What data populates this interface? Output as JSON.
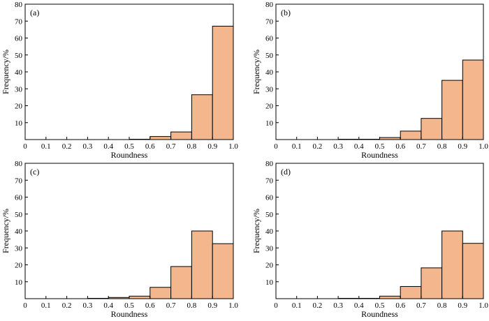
{
  "figure": {
    "panels": [
      "(a)",
      "(b)",
      "(c)",
      "(d)"
    ]
  },
  "colors": {
    "bar_fill": "#f4b68c",
    "bar_stroke": "#000000",
    "axis": "#000000"
  },
  "chart_data": [
    {
      "type": "bar",
      "panel": "(a)",
      "xlabel": "Roundness",
      "ylabel": "Frequency/%",
      "xlim": [
        0,
        1.0
      ],
      "ylim": [
        0,
        80
      ],
      "xticks": [
        "0",
        "0.1",
        "0.2",
        "0.3",
        "0.4",
        "0.5",
        "0.6",
        "0.7",
        "0.8",
        "0.9",
        "1.0"
      ],
      "yticks": [
        "10",
        "20",
        "30",
        "40",
        "50",
        "60",
        "70",
        "80"
      ],
      "bins": [
        [
          0.0,
          0.1
        ],
        [
          0.1,
          0.2
        ],
        [
          0.2,
          0.3
        ],
        [
          0.3,
          0.4
        ],
        [
          0.4,
          0.5
        ],
        [
          0.5,
          0.6
        ],
        [
          0.6,
          0.7
        ],
        [
          0.7,
          0.8
        ],
        [
          0.8,
          0.9
        ],
        [
          0.9,
          1.0
        ]
      ],
      "values": [
        0,
        0,
        0,
        0,
        0,
        0.2,
        1.8,
        4.5,
        26.5,
        67
      ]
    },
    {
      "type": "bar",
      "panel": "(b)",
      "xlabel": "Roundness",
      "ylabel": "Frequency/%",
      "xlim": [
        0,
        1.0
      ],
      "ylim": [
        0,
        80
      ],
      "xticks": [
        "0",
        "0.1",
        "0.2",
        "0.3",
        "0.4",
        "0.5",
        "0.6",
        "0.7",
        "0.8",
        "0.9",
        "1.0"
      ],
      "yticks": [
        "10",
        "20",
        "30",
        "40",
        "50",
        "60",
        "70",
        "80"
      ],
      "bins": [
        [
          0.0,
          0.1
        ],
        [
          0.1,
          0.2
        ],
        [
          0.2,
          0.3
        ],
        [
          0.3,
          0.4
        ],
        [
          0.4,
          0.5
        ],
        [
          0.5,
          0.6
        ],
        [
          0.6,
          0.7
        ],
        [
          0.7,
          0.8
        ],
        [
          0.8,
          0.9
        ],
        [
          0.9,
          1.0
        ]
      ],
      "values": [
        0,
        0,
        0,
        0.2,
        0.2,
        1.2,
        5,
        12.5,
        35,
        47
      ]
    },
    {
      "type": "bar",
      "panel": "(c)",
      "xlabel": "Roundness",
      "ylabel": "Frequency/%",
      "xlim": [
        0,
        1.0
      ],
      "ylim": [
        0,
        80
      ],
      "xticks": [
        "0",
        "0.1",
        "0.2",
        "0.3",
        "0.4",
        "0.5",
        "0.6",
        "0.7",
        "0.8",
        "0.9",
        "1.0"
      ],
      "yticks": [
        "10",
        "20",
        "30",
        "40",
        "50",
        "60",
        "70",
        "80"
      ],
      "bins": [
        [
          0.0,
          0.1
        ],
        [
          0.1,
          0.2
        ],
        [
          0.2,
          0.3
        ],
        [
          0.3,
          0.4
        ],
        [
          0.4,
          0.5
        ],
        [
          0.5,
          0.6
        ],
        [
          0.6,
          0.7
        ],
        [
          0.7,
          0.8
        ],
        [
          0.8,
          0.9
        ],
        [
          0.9,
          1.0
        ]
      ],
      "values": [
        0,
        0,
        0,
        0.2,
        0.7,
        1.5,
        6.7,
        19,
        40,
        32.5
      ]
    },
    {
      "type": "bar",
      "panel": "(d)",
      "xlabel": "Roundness",
      "ylabel": "Frequency/%",
      "xlim": [
        0,
        1.0
      ],
      "ylim": [
        0,
        80
      ],
      "xticks": [
        "0",
        "0.1",
        "0.2",
        "0.3",
        "0.4",
        "0.5",
        "0.6",
        "0.7",
        "0.8",
        "0.9",
        "1.0"
      ],
      "yticks": [
        "10",
        "20",
        "30",
        "40",
        "50",
        "60",
        "70",
        "80"
      ],
      "bins": [
        [
          0.0,
          0.1
        ],
        [
          0.1,
          0.2
        ],
        [
          0.2,
          0.3
        ],
        [
          0.3,
          0.4
        ],
        [
          0.4,
          0.5
        ],
        [
          0.5,
          0.6
        ],
        [
          0.6,
          0.7
        ],
        [
          0.7,
          0.8
        ],
        [
          0.8,
          0.9
        ],
        [
          0.9,
          1.0
        ]
      ],
      "values": [
        0,
        0,
        0,
        0.2,
        0.2,
        1.5,
        7.2,
        18.2,
        40,
        32.7
      ]
    }
  ]
}
